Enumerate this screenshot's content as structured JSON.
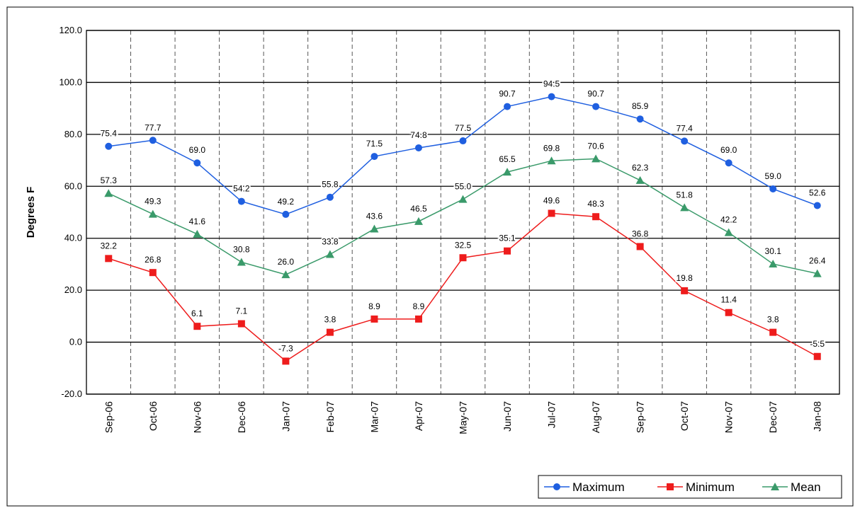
{
  "chart_data": {
    "type": "line",
    "y_label": "Degrees F",
    "categories": [
      "Sep-06",
      "Oct-06",
      "Nov-06",
      "Dec-06",
      "Jan-07",
      "Feb-07",
      "Mar-07",
      "Apr-07",
      "May-07",
      "Jun-07",
      "Jul-07",
      "Aug-07",
      "Sep-07",
      "Oct-07",
      "Nov-07",
      "Dec-07",
      "Jan-08"
    ],
    "series": [
      {
        "name": "Maximum",
        "color": "#1f5fe0",
        "marker": "circle",
        "values": [
          75.4,
          77.7,
          69.0,
          54.2,
          49.2,
          55.8,
          71.5,
          74.8,
          77.5,
          90.7,
          94.5,
          90.7,
          85.9,
          77.4,
          69.0,
          59.0,
          52.6
        ],
        "value_labels": [
          "75.4",
          "77.7",
          "69.0",
          "54.2",
          "49.2",
          "55.8",
          "71.5",
          "74.8",
          "77.5",
          "90.7",
          "94.5",
          "90.7",
          "85.9",
          "77.4",
          "69.0",
          "59.0",
          "52.6"
        ]
      },
      {
        "name": "Minimum",
        "color": "#ee1c1c",
        "marker": "square",
        "values": [
          32.2,
          26.8,
          6.1,
          7.1,
          -7.3,
          3.8,
          8.9,
          8.9,
          32.5,
          35.1,
          49.6,
          48.3,
          36.8,
          19.8,
          11.4,
          3.8,
          -5.5
        ],
        "value_labels": [
          "32.2",
          "26.8",
          "6.1",
          "7.1",
          "-7.3",
          "3.8",
          "8.9",
          "8.9",
          "32.5",
          "35.1",
          "49.6",
          "48.3",
          "36.8",
          "19.8",
          "11.4",
          "3.8",
          "-5.5"
        ]
      },
      {
        "name": "Mean",
        "color": "#3a9a6a",
        "marker": "triangle",
        "values": [
          57.3,
          49.3,
          41.6,
          30.8,
          26.0,
          33.8,
          43.6,
          46.5,
          55.0,
          65.5,
          69.8,
          70.6,
          62.3,
          51.8,
          42.2,
          30.1,
          26.4
        ],
        "value_labels": [
          "57.3",
          "49.3",
          "41.6",
          "30.8",
          "26.0",
          "33.8",
          "43.6",
          "46.5",
          "55.0",
          "65.5",
          "69.8",
          "70.6",
          "62.3",
          "51.8",
          "42.2",
          "30.1",
          "26.4"
        ]
      }
    ],
    "ylim": [
      -20,
      120
    ],
    "yticks": [
      {
        "value": -20,
        "label": "-20.0"
      },
      {
        "value": 0,
        "label": "0.0"
      },
      {
        "value": 20,
        "label": "20.0"
      },
      {
        "value": 40,
        "label": "40.0"
      },
      {
        "value": 60,
        "label": "60.0"
      },
      {
        "value": 80,
        "label": "80.0"
      },
      {
        "value": 100,
        "label": "100.0"
      },
      {
        "value": 120,
        "label": "120.0"
      }
    ],
    "grid": true,
    "legend": "bottom-right"
  }
}
